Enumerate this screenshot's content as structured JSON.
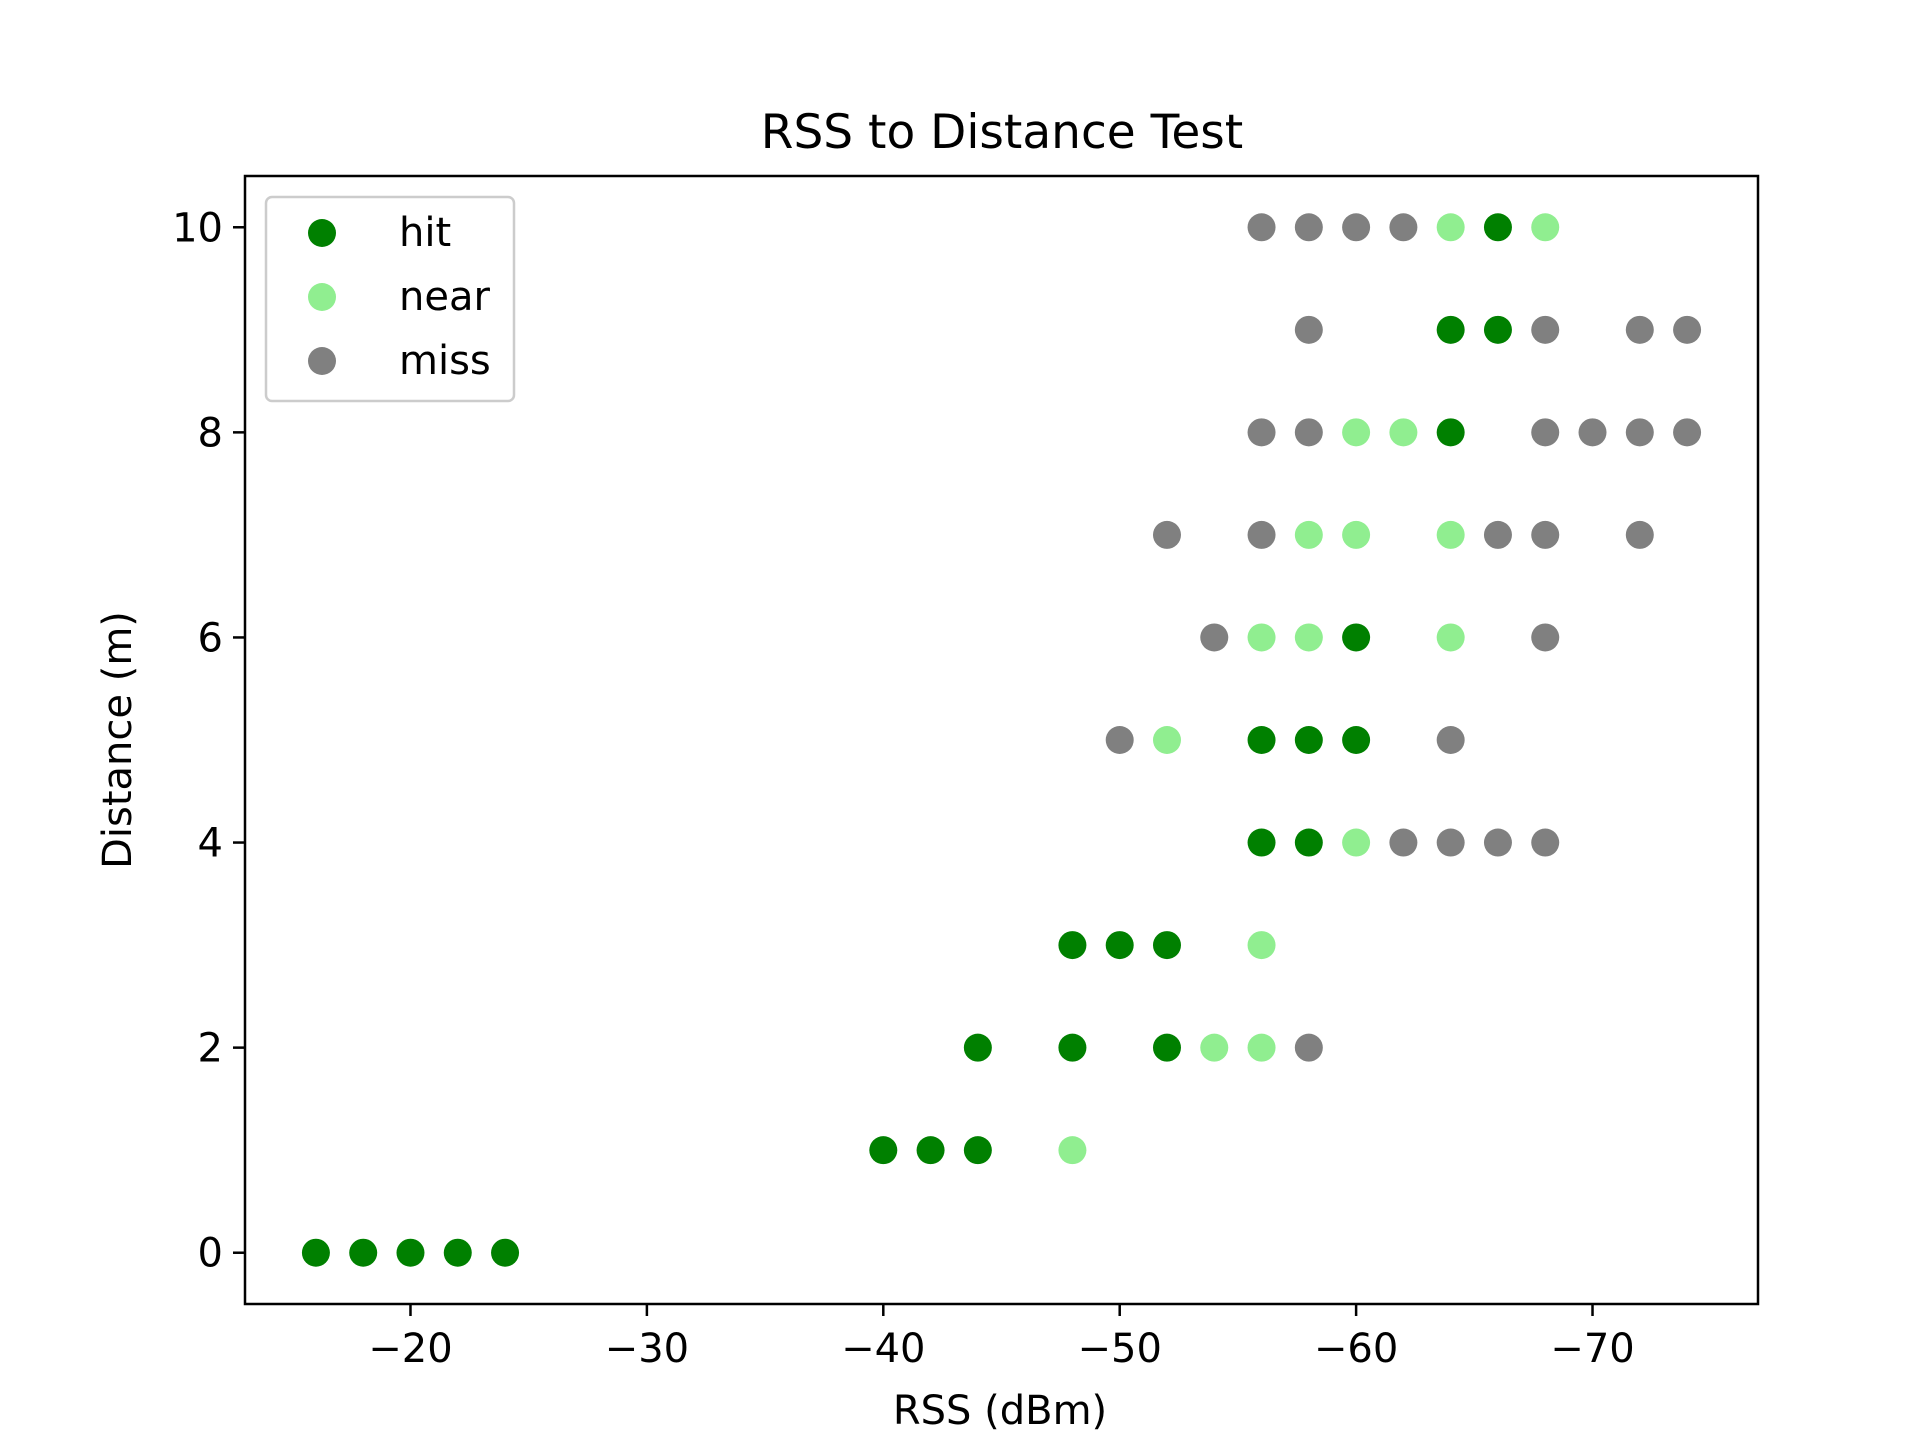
{
  "chart_data": {
    "type": "scatter",
    "title": "RSS to Distance Test",
    "xlabel": "RSS (dBm)",
    "ylabel": "Distance (m)",
    "xlim": [
      -13,
      -77
    ],
    "ylim": [
      -0.5,
      10.5
    ],
    "x_inverted": true,
    "xticks": [
      -20,
      -30,
      -40,
      -50,
      -60,
      -70
    ],
    "xtick_labels": [
      "−20",
      "−30",
      "−40",
      "−50",
      "−60",
      "−70"
    ],
    "yticks": [
      0,
      2,
      4,
      6,
      8,
      10
    ],
    "ytick_labels": [
      "0",
      "2",
      "4",
      "6",
      "8",
      "10"
    ],
    "grid": false,
    "legend_position": "top-left",
    "series": [
      {
        "name": "hit",
        "color": "#008000",
        "x": [
          -16,
          -18,
          -20,
          -22,
          -24,
          -40,
          -42,
          -44,
          -44,
          -48,
          -52,
          -48,
          -50,
          -52,
          -56,
          -58,
          -56,
          -58,
          -60,
          -60,
          -64,
          -64,
          -66,
          -66
        ],
        "y": [
          0,
          0,
          0,
          0,
          0,
          1,
          1,
          1,
          2,
          2,
          2,
          3,
          3,
          3,
          4,
          4,
          5,
          5,
          5,
          6,
          8,
          9,
          9,
          10
        ]
      },
      {
        "name": "near",
        "color": "#90ee90",
        "x": [
          -48,
          -54,
          -56,
          -56,
          -60,
          -52,
          -56,
          -58,
          -64,
          -58,
          -60,
          -64,
          -60,
          -62,
          -64,
          -68
        ],
        "y": [
          1,
          2,
          2,
          3,
          4,
          5,
          6,
          6,
          6,
          7,
          7,
          7,
          8,
          8,
          10,
          10
        ]
      },
      {
        "name": "miss",
        "color": "#808080",
        "x": [
          -58,
          -62,
          -64,
          -66,
          -68,
          -50,
          -64,
          -54,
          -68,
          -52,
          -56,
          -66,
          -68,
          -72,
          -56,
          -58,
          -68,
          -70,
          -72,
          -74,
          -58,
          -68,
          -72,
          -74,
          -56,
          -58,
          -60,
          -62
        ],
        "y": [
          2,
          4,
          4,
          4,
          4,
          5,
          5,
          6,
          6,
          7,
          7,
          7,
          7,
          7,
          8,
          8,
          8,
          8,
          8,
          8,
          9,
          9,
          9,
          9,
          10,
          10,
          10,
          10
        ]
      }
    ]
  }
}
